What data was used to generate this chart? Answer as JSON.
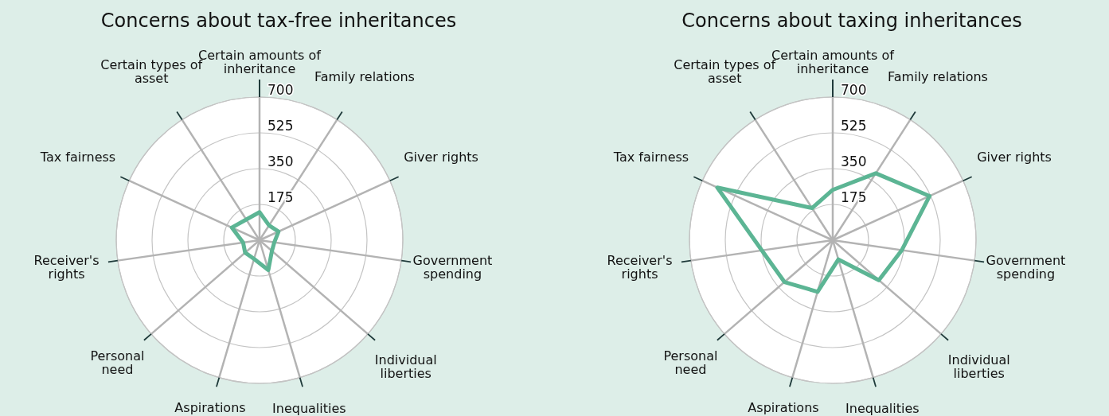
{
  "chart_data": [
    {
      "type": "radar",
      "title": "Concerns about tax-free inheritances",
      "categories": [
        "Certain amounts of\ninheritance",
        "Family relations",
        "Giver rights",
        "Government\nspending",
        "Individual\nliberties",
        "Inequalities",
        "Aspirations",
        "Personal\nneed",
        "Receiver's\nrights",
        "Tax fairness",
        "Certain types of\nasset"
      ],
      "ylim": [
        0,
        700
      ],
      "yticks": [
        175,
        350,
        525,
        700
      ],
      "grid": true,
      "series": [
        {
          "color": "#5cb594",
          "values": [
            137,
            86,
            102,
            73,
            80,
            152,
            95,
            93,
            81,
            149,
            120
          ]
        }
      ]
    },
    {
      "type": "radar",
      "title": "Concerns about taxing inheritances",
      "categories": [
        "Certain amounts of\ninheritance",
        "Family relations",
        "Giver rights",
        "Government\nspending",
        "Individual\nliberties",
        "Inequalities",
        "Aspirations",
        "Personal\nneed",
        "Receiver's\nrights",
        "Tax fairness",
        "Certain types of\nasset"
      ],
      "ylim": [
        0,
        700
      ],
      "yticks": [
        175,
        350,
        525,
        700
      ],
      "grid": true,
      "series": [
        {
          "color": "#5cb594",
          "values": [
            246,
            389,
            520,
            341,
            298,
            98,
            263,
            312,
            350,
            620,
            187
          ]
        }
      ]
    }
  ]
}
